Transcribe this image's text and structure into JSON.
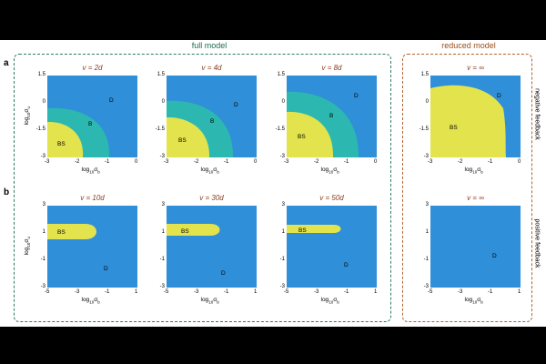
{
  "headers": {
    "full_model": "full model",
    "reduced_model": "reduced model"
  },
  "row_labels": {
    "a": "a",
    "b": "b"
  },
  "side_labels": {
    "top": "negative feedback",
    "bottom": "positive feedback"
  },
  "axis": {
    "x_top": {
      "base": "log",
      "sub": "10",
      "sym": "σ",
      "symsub": "b"
    },
    "x_bottom": {
      "base": "log",
      "sub": "10",
      "sym": "σ",
      "symsub": "b"
    },
    "y_top": {
      "base": "log",
      "sub": "10",
      "sym": "σ",
      "symsub": "u"
    },
    "y_bottom": {
      "base": "log",
      "sub": "10",
      "sym": "σ",
      "symsub": "u"
    },
    "x_ticks_top": [
      "-3",
      "-2",
      "-1",
      "0"
    ],
    "y_ticks_top": [
      "1.5",
      "0",
      "-1.5",
      "-3"
    ],
    "x_ticks_bottom": [
      "-5",
      "-3",
      "-1",
      "1"
    ],
    "y_ticks_bottom": [
      "3",
      "1",
      "-1",
      "-3"
    ]
  },
  "colors": {
    "D": "#2f8fd8",
    "B": "#2cb8b0",
    "BS": "#e3e34e",
    "border_full": "#2f7a66",
    "border_reduced": "#b0622e"
  },
  "chart_data": [
    {
      "type": "heatmap",
      "title": "v = 2d",
      "regions": [
        "D",
        "B",
        "BS"
      ],
      "xlim": [
        -3,
        0
      ],
      "ylim": [
        -3,
        1.5
      ]
    },
    {
      "type": "heatmap",
      "title": "v = 4d",
      "regions": [
        "D",
        "B",
        "BS"
      ],
      "xlim": [
        -3,
        0
      ],
      "ylim": [
        -3,
        1.5
      ]
    },
    {
      "type": "heatmap",
      "title": "v = 8d",
      "regions": [
        "D",
        "B",
        "BS"
      ],
      "xlim": [
        -3,
        0
      ],
      "ylim": [
        -3,
        1.5
      ]
    },
    {
      "type": "heatmap",
      "title": "v = ∞",
      "regions": [
        "D",
        "BS"
      ],
      "xlim": [
        -3,
        0
      ],
      "ylim": [
        -3,
        1.5
      ]
    },
    {
      "type": "heatmap",
      "title": "v = 10d",
      "regions": [
        "BS",
        "D"
      ],
      "xlim": [
        -5,
        1
      ],
      "ylim": [
        -3,
        3
      ]
    },
    {
      "type": "heatmap",
      "title": "v = 30d",
      "regions": [
        "BS",
        "D"
      ],
      "xlim": [
        -5,
        1
      ],
      "ylim": [
        -3,
        3
      ]
    },
    {
      "type": "heatmap",
      "title": "v = 50d",
      "regions": [
        "BS",
        "D"
      ],
      "xlim": [
        -5,
        1
      ],
      "ylim": [
        -3,
        3
      ]
    },
    {
      "type": "heatmap",
      "title": "v = ∞",
      "regions": [
        "D"
      ],
      "xlim": [
        -5,
        1
      ],
      "ylim": [
        -3,
        3
      ]
    }
  ]
}
